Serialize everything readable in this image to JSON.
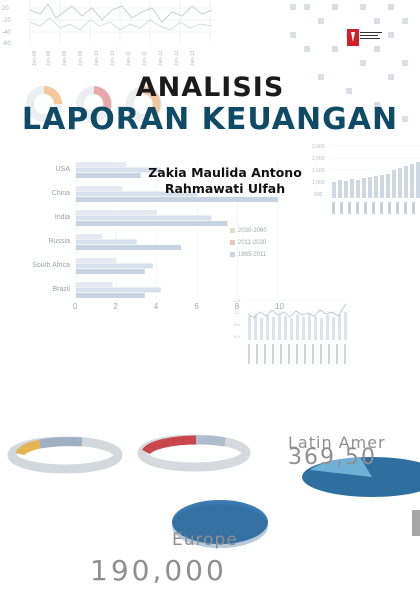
{
  "cover": {
    "title_line1": "ANALISIS",
    "title_line2": "LAPORAN KEUANGAN",
    "author_1": "Zakia Maulida Antono",
    "author_2": "Rahmawati Ulfah"
  },
  "background": {
    "europe_label": "Europe",
    "europe_value": "190,000",
    "latin_label": "Latin Amer",
    "latin_value": "369,50"
  },
  "colors": {
    "title_dark": "#1b1b1b",
    "title_blue": "#0f4a66",
    "bar_light": "#dfe6ed",
    "bar_blue": "#c7d5e3",
    "pie_blue": "#3b78ad",
    "publisher_red": "#d0202a"
  },
  "chart_data": {
    "type": "bar",
    "orientation": "horizontal",
    "categories": [
      "USA",
      "China",
      "India",
      "Russia",
      "South Africa",
      "Brazil"
    ],
    "series": [
      {
        "name": "2030-2060",
        "values": [
          2.5,
          2.3,
          4.0,
          1.3,
          2.0,
          1.8
        ]
      },
      {
        "name": "2011-2030",
        "values": [
          4.2,
          6.0,
          6.7,
          3.0,
          3.8,
          4.2
        ]
      },
      {
        "name": "1995-2011",
        "values": [
          3.2,
          10.0,
          7.5,
          5.2,
          3.4,
          3.4
        ]
      }
    ],
    "xticks": [
      "0",
      "2",
      "4",
      "6",
      "8",
      "10"
    ],
    "xlim": [
      0,
      10
    ]
  }
}
